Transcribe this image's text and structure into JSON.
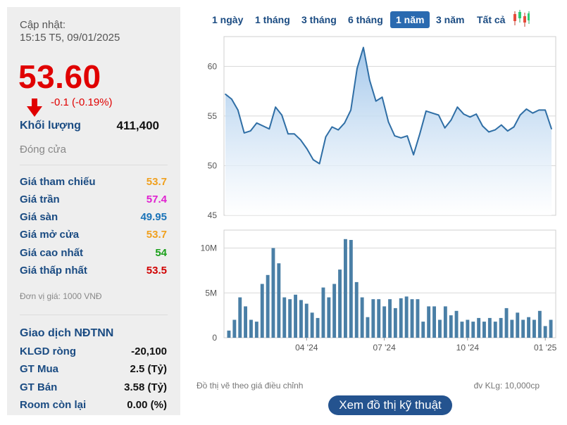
{
  "summary": {
    "update_label": "Cập nhật:",
    "update_time": "15:15 T5, 09/01/2025",
    "price": "53.60",
    "change": "-0.1 (-0.19%)",
    "volume_label": "Khối lượng",
    "volume_value": "411,400",
    "status": "Đóng cửa"
  },
  "price_rows": [
    {
      "label": "Giá tham chiếu",
      "value": "53.7",
      "color": "#f0a01e"
    },
    {
      "label": "Giá trần",
      "value": "57.4",
      "color": "#e020d0"
    },
    {
      "label": "Giá sàn",
      "value": "49.95",
      "color": "#1a73b8"
    },
    {
      "label": "Giá mở cửa",
      "value": "53.7",
      "color": "#f0a01e"
    },
    {
      "label": "Giá cao nhất",
      "value": "54",
      "color": "#1aa01a"
    },
    {
      "label": "Giá thấp nhất",
      "value": "53.5",
      "color": "#d00000"
    }
  ],
  "unit_note": "Đơn vị giá: 1000 VNĐ",
  "foreign": {
    "title": "Giao dịch NĐTNN",
    "rows": [
      {
        "label": "KLGD ròng",
        "value": "-20,100"
      },
      {
        "label": "GT Mua",
        "value": "2.5 (Tỷ)"
      },
      {
        "label": "GT Bán",
        "value": "3.58 (Tỷ)"
      },
      {
        "label": "Room còn lại",
        "value": "0.00 (%)"
      }
    ]
  },
  "tabs": [
    {
      "label": "1 ngày",
      "active": false
    },
    {
      "label": "1 tháng",
      "active": false
    },
    {
      "label": "3 tháng",
      "active": false
    },
    {
      "label": "6 tháng",
      "active": false
    },
    {
      "label": "1 năm",
      "active": true
    },
    {
      "label": "3 năm",
      "active": false
    },
    {
      "label": "Tất cả",
      "active": false
    }
  ],
  "chart_icon": "candlestick-icon",
  "notes": {
    "adjusted": "Đồ thị vẽ theo giá điều chỉnh",
    "volume_unit": "đv KLg: 10,000cp"
  },
  "tech_button": "Xem đồ thị kỹ thuật",
  "colors": {
    "line": "#2f6ea5",
    "area_top": "#9fc5ea",
    "bar": "#4a7fa6",
    "price_red": "#e00000",
    "label_blue": "#1a4b82"
  },
  "chart_data": [
    {
      "type": "area",
      "title": "",
      "ylim": [
        45,
        63
      ],
      "yticks": [
        45,
        50,
        55,
        60
      ],
      "grid": true,
      "values": [
        57.2,
        56.7,
        55.6,
        53.3,
        53.5,
        54.3,
        54.0,
        53.7,
        55.9,
        55.1,
        53.2,
        53.2,
        52.6,
        51.7,
        50.6,
        50.2,
        52.9,
        53.9,
        53.6,
        54.3,
        55.6,
        59.8,
        61.9,
        58.6,
        56.5,
        56.9,
        54.4,
        53.0,
        52.8,
        53.0,
        51.1,
        53.2,
        55.5,
        55.3,
        55.1,
        53.8,
        54.6,
        55.9,
        55.2,
        54.9,
        55.2,
        54.0,
        53.4,
        53.6,
        54.1,
        53.5,
        53.9,
        55.1,
        55.7,
        55.3,
        55.6,
        55.6,
        53.7
      ]
    },
    {
      "type": "bar",
      "title": "",
      "ylabel": "",
      "ylim": [
        0,
        12000000
      ],
      "yticks": [
        {
          "value": 0,
          "label": "0"
        },
        {
          "value": 5000000,
          "label": "5M"
        },
        {
          "value": 10000000,
          "label": "10M"
        }
      ],
      "x_ticks": [
        {
          "index": 14,
          "label": "04 '24"
        },
        {
          "index": 28,
          "label": "07 '24"
        },
        {
          "index": 43,
          "label": "10 '24"
        },
        {
          "index": 57,
          "label": "01 '25"
        }
      ],
      "values": [
        0.8,
        2.0,
        4.5,
        3.5,
        2.0,
        1.8,
        6.0,
        7.0,
        10.0,
        8.3,
        4.5,
        4.3,
        4.8,
        4.2,
        3.8,
        2.8,
        2.2,
        5.6,
        4.5,
        6.0,
        7.6,
        11.0,
        10.9,
        6.2,
        4.5,
        2.3,
        4.3,
        4.3,
        3.5,
        4.3,
        3.3,
        4.4,
        4.6,
        4.3,
        4.3,
        1.8,
        3.5,
        3.5,
        2.0,
        3.5,
        2.5,
        3.0,
        1.8,
        2.0,
        1.8,
        2.2,
        1.8,
        2.2,
        1.8,
        2.2,
        3.3,
        2.0,
        2.8,
        2.0,
        2.3,
        2.0,
        3.0,
        1.3,
        2.0
      ],
      "value_unit_millions": true
    }
  ]
}
